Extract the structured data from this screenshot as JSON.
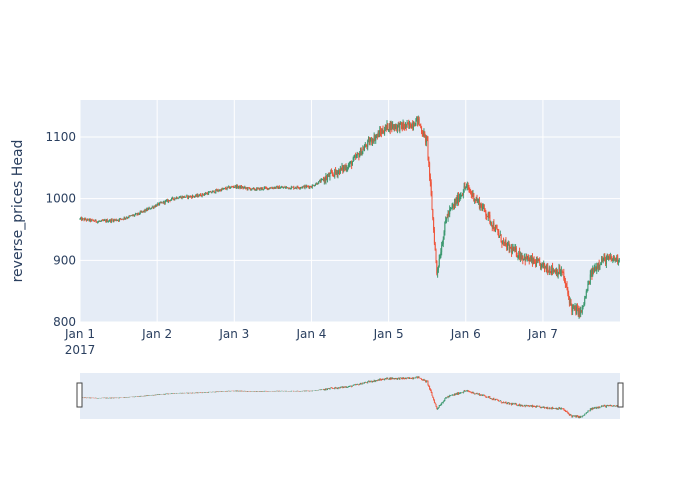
{
  "chart_data": {
    "type": "candlestick",
    "title": "",
    "ylabel": "reverse_prices Head",
    "xlabel": "",
    "x_year_label": "2017",
    "xlim": [
      "2017-01-01 00:00",
      "2017-01-07 23:59"
    ],
    "ylim": [
      800,
      1160
    ],
    "x_ticks": [
      {
        "date": "2017-01-01",
        "label": "Jan 1"
      },
      {
        "date": "2017-01-02",
        "label": "Jan 2"
      },
      {
        "date": "2017-01-03",
        "label": "Jan 3"
      },
      {
        "date": "2017-01-04",
        "label": "Jan 4"
      },
      {
        "date": "2017-01-05",
        "label": "Jan 5"
      },
      {
        "date": "2017-01-06",
        "label": "Jan 6"
      },
      {
        "date": "2017-01-07",
        "label": "Jan 7"
      }
    ],
    "y_ticks": [
      800,
      900,
      1000,
      1100
    ],
    "grid": true,
    "increasing_color": "#3d9970",
    "decreasing_color": "#ef553b",
    "plot_bg": "#e5ecf6",
    "rangeslider": true,
    "price_path": [
      {
        "t": "2017-01-01 00:00",
        "p": 967
      },
      {
        "t": "2017-01-01 06:00",
        "p": 963
      },
      {
        "t": "2017-01-01 12:00",
        "p": 966
      },
      {
        "t": "2017-01-01 18:00",
        "p": 975
      },
      {
        "t": "2017-01-02 00:00",
        "p": 990
      },
      {
        "t": "2017-01-02 06:00",
        "p": 1002
      },
      {
        "t": "2017-01-02 12:00",
        "p": 1004
      },
      {
        "t": "2017-01-02 18:00",
        "p": 1012
      },
      {
        "t": "2017-01-03 00:00",
        "p": 1020
      },
      {
        "t": "2017-01-03 06:00",
        "p": 1015
      },
      {
        "t": "2017-01-03 12:00",
        "p": 1018
      },
      {
        "t": "2017-01-03 18:00",
        "p": 1018
      },
      {
        "t": "2017-01-04 00:00",
        "p": 1020
      },
      {
        "t": "2017-01-04 06:00",
        "p": 1038
      },
      {
        "t": "2017-01-04 12:00",
        "p": 1055
      },
      {
        "t": "2017-01-04 18:00",
        "p": 1092
      },
      {
        "t": "2017-01-05 00:00",
        "p": 1118
      },
      {
        "t": "2017-01-05 06:00",
        "p": 1117
      },
      {
        "t": "2017-01-05 09:00",
        "p": 1128
      },
      {
        "t": "2017-01-05 12:00",
        "p": 1090
      },
      {
        "t": "2017-01-05 15:00",
        "p": 880
      },
      {
        "t": "2017-01-05 18:00",
        "p": 970
      },
      {
        "t": "2017-01-06 00:00",
        "p": 1020
      },
      {
        "t": "2017-01-06 06:00",
        "p": 980
      },
      {
        "t": "2017-01-06 12:00",
        "p": 925
      },
      {
        "t": "2017-01-06 18:00",
        "p": 905
      },
      {
        "t": "2017-01-07 00:00",
        "p": 890
      },
      {
        "t": "2017-01-07 06:00",
        "p": 880
      },
      {
        "t": "2017-01-07 09:00",
        "p": 822
      },
      {
        "t": "2017-01-07 12:00",
        "p": 815
      },
      {
        "t": "2017-01-07 15:00",
        "p": 878
      },
      {
        "t": "2017-01-07 18:00",
        "p": 900
      },
      {
        "t": "2017-01-07 23:59",
        "p": 903
      }
    ]
  }
}
